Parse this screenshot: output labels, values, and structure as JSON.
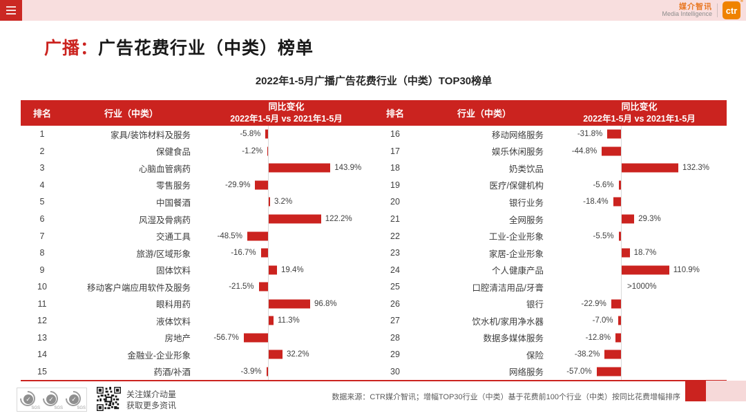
{
  "topbar": {
    "logo_cn": "媒介智讯",
    "logo_en": "Media Intelligence",
    "logo_badge": "ctr",
    "logo_reg": "®"
  },
  "title": {
    "highlight": "广播：",
    "rest": "广告花费行业（中类）榜单"
  },
  "subtitle": "2022年1-5月广播广告花费行业（中类）TOP30榜单",
  "colors": {
    "brand_red": "#cb231f",
    "topbar_pink": "#f8dede",
    "logo_orange": "#ef8200",
    "axis_gray": "#d9d9d9"
  },
  "table_headers": {
    "rank": "排名",
    "industry": "行业（中类）",
    "change_line1": "同比变化",
    "change_line2": "2022年1-5月 vs 2021年1-5月"
  },
  "chart_data": {
    "type": "bar",
    "orientation": "horizontal",
    "value_format": "percent",
    "title": "2022年1-5月广播广告花费行业（中类）TOP30榜单",
    "series_note": "同比变化 2022年1-5月 vs 2021年1-5月",
    "panels": [
      {
        "rows": [
          {
            "rank": "1",
            "industry": "家具/装饰材料及服务",
            "value": -5.8,
            "label": "-5.8%"
          },
          {
            "rank": "2",
            "industry": "保健食品",
            "value": -1.2,
            "label": "-1.2%"
          },
          {
            "rank": "3",
            "industry": "心脑血管病药",
            "value": 143.9,
            "label": "143.9%"
          },
          {
            "rank": "4",
            "industry": "零售服务",
            "value": -29.9,
            "label": "-29.9%"
          },
          {
            "rank": "5",
            "industry": "中国餐酒",
            "value": 3.2,
            "label": "3.2%"
          },
          {
            "rank": "6",
            "industry": "风湿及骨病药",
            "value": 122.2,
            "label": "122.2%"
          },
          {
            "rank": "7",
            "industry": "交通工具",
            "value": -48.5,
            "label": "-48.5%"
          },
          {
            "rank": "8",
            "industry": "旅游/区域形象",
            "value": -16.7,
            "label": "-16.7%"
          },
          {
            "rank": "9",
            "industry": "固体饮料",
            "value": 19.4,
            "label": "19.4%"
          },
          {
            "rank": "10",
            "industry": "移动客户端应用软件及服务",
            "value": -21.5,
            "label": "-21.5%"
          },
          {
            "rank": "11",
            "industry": "眼科用药",
            "value": 96.8,
            "label": "96.8%"
          },
          {
            "rank": "12",
            "industry": "液体饮料",
            "value": 11.3,
            "label": "11.3%"
          },
          {
            "rank": "13",
            "industry": "房地产",
            "value": -56.7,
            "label": "-56.7%"
          },
          {
            "rank": "14",
            "industry": "金融业-企业形象",
            "value": 32.2,
            "label": "32.2%"
          },
          {
            "rank": "15",
            "industry": "药酒/补酒",
            "value": -3.9,
            "label": "-3.9%"
          }
        ]
      },
      {
        "rows": [
          {
            "rank": "16",
            "industry": "移动网络服务",
            "value": -31.8,
            "label": "-31.8%"
          },
          {
            "rank": "17",
            "industry": "娱乐休闲服务",
            "value": -44.8,
            "label": "-44.8%"
          },
          {
            "rank": "18",
            "industry": "奶类饮品",
            "value": 132.3,
            "label": "132.3%"
          },
          {
            "rank": "19",
            "industry": "医疗/保健机构",
            "value": -5.6,
            "label": "-5.6%"
          },
          {
            "rank": "20",
            "industry": "银行业务",
            "value": -18.4,
            "label": "-18.4%"
          },
          {
            "rank": "21",
            "industry": "全网服务",
            "value": 29.3,
            "label": "29.3%"
          },
          {
            "rank": "22",
            "industry": "工业-企业形象",
            "value": -5.5,
            "label": "-5.5%"
          },
          {
            "rank": "23",
            "industry": "家居-企业形象",
            "value": 18.7,
            "label": "18.7%"
          },
          {
            "rank": "24",
            "industry": "个人健康产品",
            "value": 110.9,
            "label": "110.9%"
          },
          {
            "rank": "25",
            "industry": "口腔清洁用品/牙膏",
            "value": null,
            "label": ">1000%"
          },
          {
            "rank": "26",
            "industry": "银行",
            "value": -22.9,
            "label": "-22.9%"
          },
          {
            "rank": "27",
            "industry": "饮水机/家用净水器",
            "value": -7.0,
            "label": "-7.0%"
          },
          {
            "rank": "28",
            "industry": "数据多媒体服务",
            "value": -12.8,
            "label": "-12.8%"
          },
          {
            "rank": "29",
            "industry": "保险",
            "value": -38.2,
            "label": "-38.2%"
          },
          {
            "rank": "30",
            "industry": "网络服务",
            "value": -57.0,
            "label": "-57.0%"
          }
        ]
      }
    ]
  },
  "footer": {
    "follow_line1": "关注媒介动量",
    "follow_line2": "获取更多资讯",
    "source": "数据来源：CTR媒介智讯；增幅TOP30行业（中类）基于花费前100个行业（中类）按同比花费增幅排序",
    "sgs_label": "SGS"
  }
}
